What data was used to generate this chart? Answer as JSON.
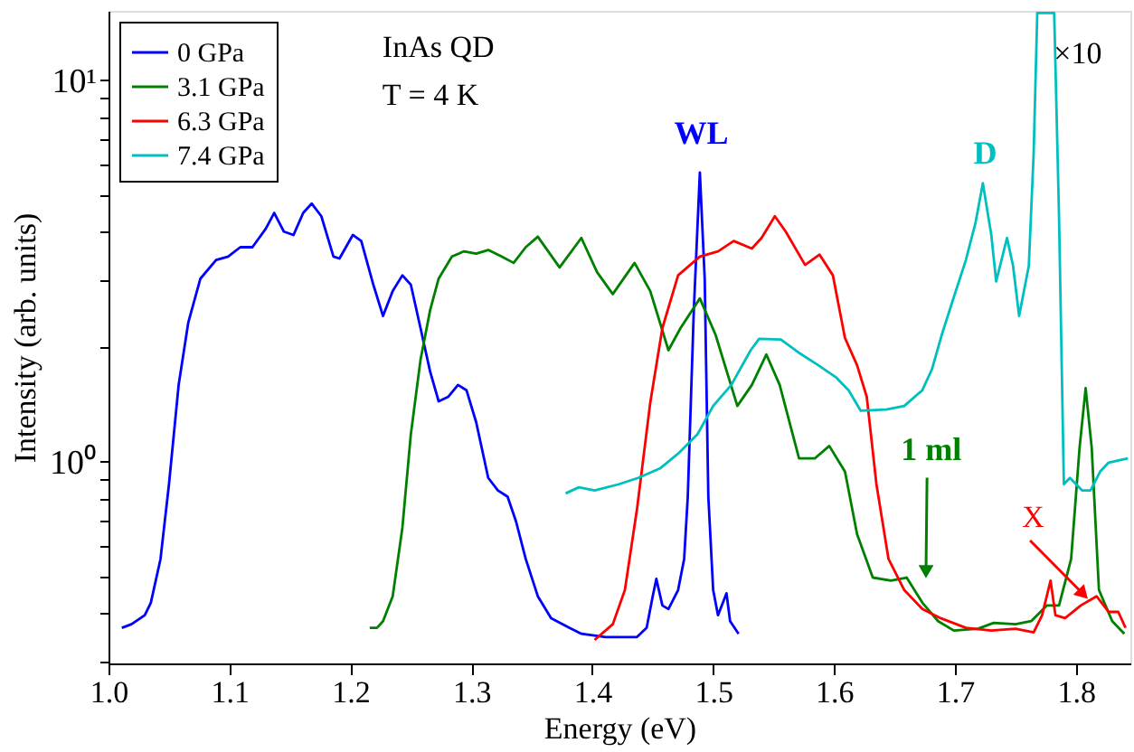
{
  "chart_data": {
    "type": "line",
    "xlabel": "Energy (eV)",
    "ylabel": "Intensity (arb. units)",
    "log": "y",
    "grid": false,
    "legend": "top left",
    "line_style": "solid",
    "marker": "none",
    "xlim": [
      1.0,
      1.845
    ],
    "xticks": [
      {
        "value": 1.0,
        "label": "1.0"
      },
      {
        "value": 1.1,
        "label": "1.1"
      },
      {
        "value": 1.2,
        "label": "1.2"
      },
      {
        "value": 1.3,
        "label": "1.3"
      },
      {
        "value": 1.4,
        "label": "1.4"
      },
      {
        "value": 1.5,
        "label": "1.5"
      },
      {
        "value": 1.6,
        "label": "1.6"
      },
      {
        "value": 1.7,
        "label": "1.7"
      },
      {
        "value": 1.8,
        "label": "1.8"
      }
    ],
    "ylim": [
      0.296,
      15.2
    ],
    "yticks": [
      {
        "value": 0.3,
        "label": null
      },
      {
        "value": 0.4,
        "label": null
      },
      {
        "value": 0.5,
        "label": null
      },
      {
        "value": 0.6,
        "label": null
      },
      {
        "value": 0.7,
        "label": null
      },
      {
        "value": 0.8,
        "label": null
      },
      {
        "value": 0.9,
        "label": null
      },
      {
        "value": 1,
        "label": "10⁰"
      },
      {
        "value": 2,
        "label": null
      },
      {
        "value": 3,
        "label": null
      },
      {
        "value": 4,
        "label": null
      },
      {
        "value": 5,
        "label": null
      },
      {
        "value": 6,
        "label": null
      },
      {
        "value": 7,
        "label": null
      },
      {
        "value": 8,
        "label": null
      },
      {
        "value": 9,
        "label": null
      },
      {
        "value": 10,
        "label": "10¹"
      }
    ],
    "series": [
      {
        "name": "0 GPa",
        "color": "#0000ff",
        "x": [
          1.011,
          1.019,
          1.03,
          1.035,
          1.043,
          1.05,
          1.058,
          1.066,
          1.076,
          1.089,
          1.099,
          1.109,
          1.119,
          1.13,
          1.137,
          1.145,
          1.153,
          1.161,
          1.168,
          1.176,
          1.186,
          1.191,
          1.202,
          1.209,
          1.219,
          1.227,
          1.235,
          1.243,
          1.25,
          1.258,
          1.266,
          1.273,
          1.281,
          1.289,
          1.296,
          1.304,
          1.314,
          1.322,
          1.33,
          1.337,
          1.345,
          1.355,
          1.366,
          1.381,
          1.391,
          1.411,
          1.437,
          1.445,
          1.45,
          1.453,
          1.458,
          1.463,
          1.471,
          1.476,
          1.479,
          1.484,
          1.489,
          1.493,
          1.496,
          1.5,
          1.504,
          1.511,
          1.514,
          1.521
        ],
        "values": [
          0.367,
          0.375,
          0.396,
          0.427,
          0.556,
          0.873,
          1.59,
          2.32,
          3.02,
          3.38,
          3.45,
          3.65,
          3.65,
          4.08,
          4.49,
          4.01,
          3.93,
          4.49,
          4.75,
          4.4,
          3.45,
          3.41,
          3.93,
          3.79,
          2.91,
          2.41,
          2.8,
          3.08,
          2.91,
          2.24,
          1.72,
          1.44,
          1.48,
          1.59,
          1.54,
          1.27,
          0.907,
          0.841,
          0.81,
          0.697,
          0.556,
          0.444,
          0.389,
          0.367,
          0.354,
          0.347,
          0.347,
          0.367,
          0.444,
          0.493,
          0.42,
          0.411,
          0.461,
          0.556,
          0.81,
          2.5,
          5.73,
          3.02,
          0.81,
          0.461,
          0.396,
          0.452,
          0.382,
          0.354
        ]
      },
      {
        "name": "3.1 GPa",
        "color": "#008000",
        "x": [
          1.216,
          1.222,
          1.227,
          1.235,
          1.243,
          1.25,
          1.258,
          1.266,
          1.273,
          1.284,
          1.294,
          1.304,
          1.314,
          1.325,
          1.335,
          1.345,
          1.355,
          1.373,
          1.391,
          1.404,
          1.417,
          1.435,
          1.448,
          1.463,
          1.473,
          1.489,
          1.502,
          1.52,
          1.532,
          1.544,
          1.555,
          1.571,
          1.584,
          1.596,
          1.609,
          1.619,
          1.632,
          1.647,
          1.66,
          1.673,
          1.686,
          1.699,
          1.719,
          1.732,
          1.75,
          1.763,
          1.776,
          1.786,
          1.796,
          1.803,
          1.808,
          1.813,
          1.819,
          1.83,
          1.84
        ],
        "values": [
          0.367,
          0.367,
          0.382,
          0.444,
          0.671,
          1.18,
          1.85,
          2.5,
          3.02,
          3.45,
          3.56,
          3.51,
          3.59,
          3.45,
          3.32,
          3.65,
          3.89,
          3.23,
          3.86,
          3.14,
          2.75,
          3.32,
          2.8,
          1.96,
          2.24,
          2.68,
          2.15,
          1.4,
          1.59,
          1.91,
          1.59,
          1.02,
          1.02,
          1.1,
          0.942,
          0.646,
          0.497,
          0.488,
          0.497,
          0.427,
          0.382,
          0.361,
          0.365,
          0.378,
          0.375,
          0.382,
          0.42,
          0.42,
          0.556,
          1.09,
          1.56,
          1.09,
          0.461,
          0.382,
          0.354
        ]
      },
      {
        "name": "6.3 GPa",
        "color": "#ff0000",
        "x": [
          1.402,
          1.417,
          1.427,
          1.437,
          1.448,
          1.458,
          1.471,
          1.489,
          1.504,
          1.517,
          1.532,
          1.54,
          1.551,
          1.56,
          1.576,
          1.588,
          1.599,
          1.609,
          1.619,
          1.627,
          1.635,
          1.645,
          1.658,
          1.673,
          1.688,
          1.709,
          1.73,
          1.75,
          1.765,
          1.772,
          1.779,
          1.783,
          1.791,
          1.804,
          1.817,
          1.827,
          1.835,
          1.841
        ],
        "values": [
          0.341,
          0.375,
          0.461,
          0.751,
          1.43,
          2.24,
          3.08,
          3.45,
          3.56,
          3.79,
          3.62,
          3.86,
          4.4,
          4.01,
          3.28,
          3.49,
          3.08,
          2.11,
          1.79,
          1.48,
          0.873,
          0.556,
          0.461,
          0.411,
          0.389,
          0.367,
          0.361,
          0.365,
          0.357,
          0.396,
          0.488,
          0.396,
          0.389,
          0.42,
          0.444,
          0.404,
          0.404,
          0.367
        ]
      },
      {
        "name": "7.4 GPa",
        "color": "#00bfbf",
        "x": [
          1.378,
          1.389,
          1.402,
          1.422,
          1.438,
          1.456,
          1.471,
          1.487,
          1.5,
          1.515,
          1.531,
          1.538,
          1.556,
          1.572,
          1.587,
          1.602,
          1.612,
          1.622,
          1.643,
          1.658,
          1.673,
          1.681,
          1.689,
          1.699,
          1.709,
          1.717,
          1.723,
          1.73,
          1.734,
          1.743,
          1.748,
          1.753,
          1.761,
          1.765,
          1.768,
          1.782,
          1.786,
          1.79,
          1.795,
          1.805,
          1.812,
          1.82,
          1.827,
          1.843
        ],
        "values": [
          0.826,
          0.857,
          0.841,
          0.873,
          0.907,
          0.96,
          1.05,
          1.18,
          1.4,
          1.59,
          1.96,
          2.1,
          2.09,
          1.92,
          1.79,
          1.66,
          1.54,
          1.36,
          1.37,
          1.4,
          1.54,
          1.75,
          2.15,
          2.7,
          3.38,
          4.24,
          5.37,
          3.93,
          2.97,
          3.86,
          3.26,
          2.41,
          3.26,
          6.41,
          15.0,
          15.0,
          4.4,
          0.873,
          0.907,
          0.841,
          0.841,
          0.942,
          0.995,
          1.02
        ]
      }
    ],
    "annotations": [
      "InAs QD",
      "T = 4 K",
      "WL",
      "D",
      {
        "text": "1 ml",
        "x": 1.676,
        "y": 0.515
      },
      {
        "text": "X",
        "x": 1.806,
        "y": 0.45
      },
      "×10"
    ]
  }
}
